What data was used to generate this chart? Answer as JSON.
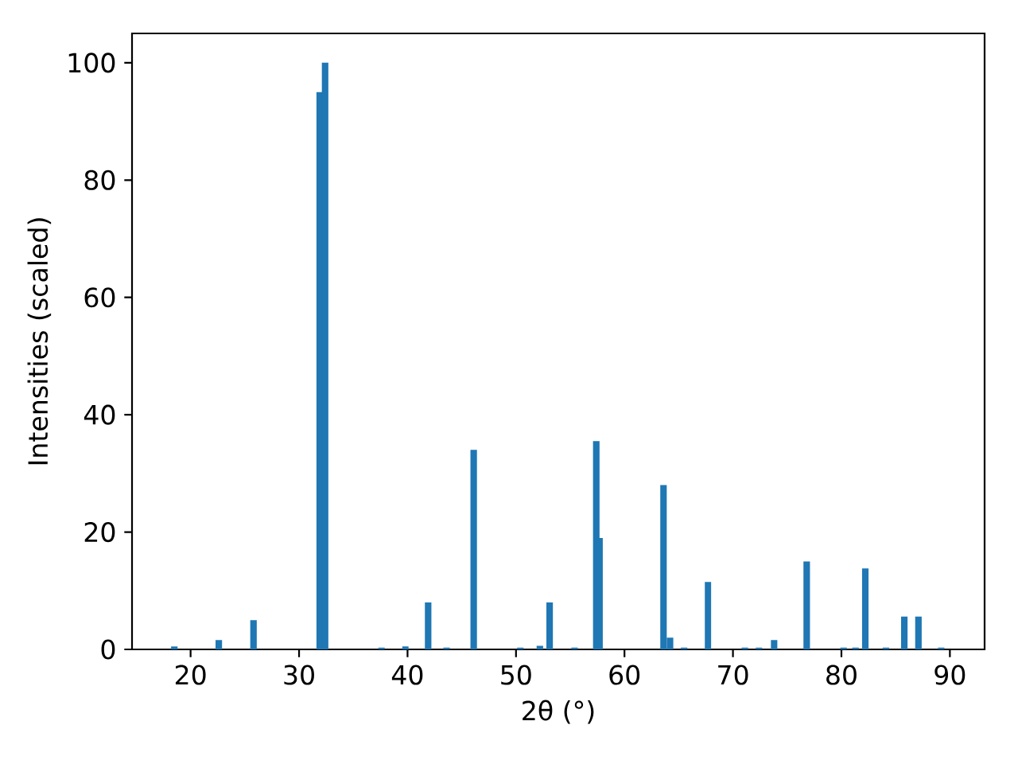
{
  "chart_data": {
    "type": "bar",
    "xlabel": "2θ (°)",
    "ylabel": "Intensities (scaled)",
    "x": [
      18.5,
      22.6,
      25.8,
      31.9,
      32.4,
      37.6,
      39.8,
      41.9,
      43.6,
      46.1,
      50.4,
      52.2,
      53.1,
      55.4,
      57.4,
      57.7,
      63.6,
      64.2,
      65.5,
      67.7,
      71.1,
      72.4,
      73.8,
      76.8,
      80.2,
      81.3,
      82.2,
      84.1,
      85.8,
      87.1,
      89.2
    ],
    "values": [
      0.5,
      1.6,
      5,
      95,
      100,
      0.3,
      0.5,
      8,
      0.3,
      34,
      0.3,
      0.6,
      8,
      0.3,
      35.5,
      19,
      28,
      2,
      0.3,
      11.5,
      0.3,
      0.3,
      1.6,
      15,
      0.3,
      0.3,
      13.8,
      0.3,
      5.6,
      5.6,
      0.3
    ],
    "color": "#1f77b4",
    "xlim": [
      14.6,
      93.2
    ],
    "ylim": [
      0,
      105
    ],
    "xticks": [
      20,
      30,
      40,
      50,
      60,
      70,
      80,
      90
    ],
    "yticks": [
      0,
      20,
      40,
      60,
      80,
      100
    ]
  }
}
